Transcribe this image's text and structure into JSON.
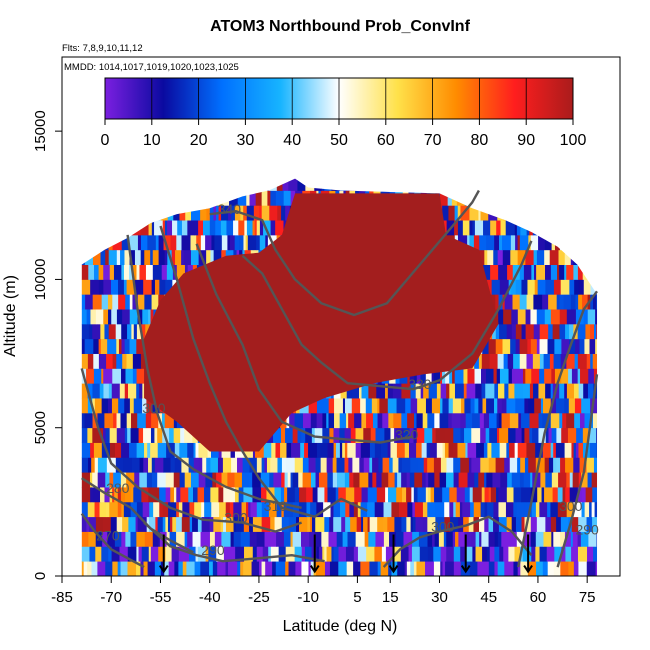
{
  "chart_data": {
    "type": "heatmap",
    "title": "ATOM3 Northbound Prob_ConvInf",
    "flights_note": "Flts: 7,8,9,10,11,12",
    "dates_note": "MMDD: 1014,1017,1019,1020,1023,1025",
    "xlabel": "Latitude (deg N)",
    "ylabel": "Altitude (m)",
    "xlim": [
      -85,
      85
    ],
    "ylim": [
      0,
      17500
    ],
    "x_ticks": [
      -85,
      -70,
      -55,
      -40,
      -25,
      -10,
      5,
      15,
      30,
      45,
      60,
      75
    ],
    "y_ticks": [
      0,
      5000,
      10000,
      15000
    ],
    "colorbar": {
      "range": [
        0,
        100
      ],
      "ticks": [
        0,
        10,
        20,
        30,
        40,
        50,
        60,
        70,
        80,
        90,
        100
      ],
      "stops": [
        "#7b1fe0",
        "#0a0aa0",
        "#0070ff",
        "#17b4ff",
        "#ffffff",
        "#ffe14a",
        "#ff8c00",
        "#ff1e1e",
        "#aa1c1c"
      ]
    },
    "envelope": [
      {
        "lat": -79,
        "top": 10500
      },
      {
        "lat": -72,
        "top": 11000
      },
      {
        "lat": -65,
        "top": 11400
      },
      {
        "lat": -58,
        "top": 11900
      },
      {
        "lat": -50,
        "top": 12200
      },
      {
        "lat": -40,
        "top": 12400
      },
      {
        "lat": -30,
        "top": 12800
      },
      {
        "lat": -22,
        "top": 13000
      },
      {
        "lat": -14,
        "top": 13400
      },
      {
        "lat": -10,
        "top": 13100
      },
      {
        "lat": 0,
        "top": 13000
      },
      {
        "lat": 15,
        "top": 12950
      },
      {
        "lat": 30,
        "top": 12900
      },
      {
        "lat": 40,
        "top": 12400
      },
      {
        "lat": 50,
        "top": 12000
      },
      {
        "lat": 58,
        "top": 11600
      },
      {
        "lat": 66,
        "top": 11100
      },
      {
        "lat": 72,
        "top": 10500
      },
      {
        "lat": 78,
        "top": 9500
      }
    ],
    "high_prob_region": [
      {
        "lat": -60,
        "alt": 8000
      },
      {
        "lat": -55,
        "alt": 9300
      },
      {
        "lat": -48,
        "alt": 10200
      },
      {
        "lat": -35,
        "alt": 10800
      },
      {
        "lat": -25,
        "alt": 10900
      },
      {
        "lat": -18,
        "alt": 11500
      },
      {
        "lat": -14,
        "alt": 12900
      },
      {
        "lat": 30,
        "alt": 12900
      },
      {
        "lat": 32,
        "alt": 11500
      },
      {
        "lat": 42,
        "alt": 11000
      },
      {
        "lat": 48,
        "alt": 8500
      },
      {
        "lat": 40,
        "alt": 7000
      },
      {
        "lat": 25,
        "alt": 6800
      },
      {
        "lat": 10,
        "alt": 6500
      },
      {
        "lat": -5,
        "alt": 6000
      },
      {
        "lat": -15,
        "alt": 5500
      },
      {
        "lat": -25,
        "alt": 4200
      },
      {
        "lat": -40,
        "alt": 4200
      },
      {
        "lat": -50,
        "alt": 5200
      },
      {
        "lat": -60,
        "alt": 6000
      }
    ],
    "contours": [
      {
        "label": "270",
        "label_at": {
          "lat": -71,
          "alt": 1200
        },
        "points": [
          [
            -79,
            2100
          ],
          [
            -75,
            1500
          ],
          [
            -70,
            900
          ],
          [
            -65,
            600
          ],
          [
            -60,
            300
          ]
        ]
      },
      {
        "label": "280",
        "label_at": {
          "lat": -68,
          "alt": 2800
        },
        "points": [
          [
            -79,
            3300
          ],
          [
            -72,
            2800
          ],
          [
            -64,
            2300
          ],
          [
            -58,
            1600
          ],
          [
            -52,
            1200
          ],
          [
            -45,
            800
          ]
        ]
      },
      {
        "label": "290",
        "label_at": {
          "lat": -39,
          "alt": 700
        },
        "points": [
          [
            -60,
            1800
          ],
          [
            -52,
            1000
          ],
          [
            -44,
            700
          ],
          [
            -36,
            500
          ],
          [
            -25,
            600
          ],
          [
            -15,
            700
          ],
          [
            -5,
            500
          ]
        ]
      },
      {
        "label": "300",
        "label_at": {
          "lat": -32,
          "alt": 1800
        },
        "points": [
          [
            -79,
            7000
          ],
          [
            -74,
            5000
          ],
          [
            -70,
            3800
          ],
          [
            -62,
            3000
          ],
          [
            -52,
            2300
          ],
          [
            -42,
            1900
          ],
          [
            -30,
            1800
          ],
          [
            -20,
            1500
          ],
          [
            -12,
            1800
          ]
        ]
      },
      {
        "label": "300",
        "label_at": {
          "lat": 31,
          "alt": 1500
        },
        "points": [
          [
            13,
            300
          ],
          [
            18,
            900
          ],
          [
            24,
            1300
          ],
          [
            30,
            1500
          ],
          [
            38,
            1700
          ],
          [
            45,
            2000
          ],
          [
            52,
            1500
          ],
          [
            58,
            700
          ]
        ]
      },
      {
        "label": "300",
        "label_at": {
          "lat": -57,
          "alt": 5500
        },
        "points": [
          [
            -65,
            11500
          ],
          [
            -62,
            9000
          ],
          [
            -59,
            7000
          ],
          [
            -56,
            5500
          ],
          [
            -52,
            4200
          ],
          [
            -45,
            3600
          ],
          [
            -35,
            3000
          ],
          [
            -25,
            2600
          ],
          [
            -12,
            2300
          ]
        ]
      },
      {
        "label": "310",
        "label_at": {
          "lat": -20,
          "alt": 2200
        },
        "points": [
          [
            -55,
            11800
          ],
          [
            -50,
            10000
          ],
          [
            -45,
            8000
          ],
          [
            -40,
            6500
          ],
          [
            -35,
            5200
          ],
          [
            -30,
            4200
          ],
          [
            -25,
            3300
          ],
          [
            -18,
            2300
          ],
          [
            -8,
            2000
          ],
          [
            0,
            2600
          ],
          [
            8,
            2200
          ]
        ]
      },
      {
        "label": "320",
        "label_at": {
          "lat": 20,
          "alt": 4600
        },
        "points": [
          [
            -44,
            11200
          ],
          [
            -38,
            9500
          ],
          [
            -30,
            7800
          ],
          [
            -25,
            6300
          ],
          [
            -18,
            5200
          ],
          [
            -8,
            4700
          ],
          [
            2,
            4600
          ],
          [
            12,
            4500
          ],
          [
            22,
            4700
          ]
        ]
      },
      {
        "label": "330",
        "label_at": {
          "lat": 24,
          "alt": 6300
        },
        "points": [
          [
            -30,
            10800
          ],
          [
            -24,
            10200
          ],
          [
            -18,
            9000
          ],
          [
            -12,
            7800
          ],
          [
            -6,
            7200
          ],
          [
            2,
            6500
          ],
          [
            12,
            6400
          ],
          [
            22,
            6300
          ],
          [
            30,
            6600
          ],
          [
            40,
            7500
          ],
          [
            48,
            9000
          ],
          [
            55,
            10500
          ],
          [
            58,
            11300
          ]
        ]
      },
      {
        "label": "340",
        "label_at": {
          "lat": -34,
          "alt": 12200
        },
        "points": [
          [
            -40,
            12200
          ],
          [
            -32,
            12300
          ],
          [
            -24,
            12000
          ],
          [
            -20,
            11000
          ],
          [
            -14,
            10000
          ],
          [
            -6,
            9200
          ],
          [
            4,
            8800
          ],
          [
            14,
            9200
          ],
          [
            24,
            10500
          ],
          [
            34,
            11800
          ],
          [
            40,
            12600
          ],
          [
            42,
            13000
          ]
        ]
      },
      {
        "label": "300",
        "label_at": {
          "lat": 70,
          "alt": 2200
        },
        "points": [
          [
            54,
            300
          ],
          [
            58,
            2500
          ],
          [
            62,
            4800
          ],
          [
            66,
            6500
          ],
          [
            70,
            7800
          ],
          [
            74,
            9000
          ],
          [
            78,
            9600
          ]
        ]
      },
      {
        "label": "290",
        "label_at": {
          "lat": 75,
          "alt": 1400
        },
        "points": [
          [
            66,
            300
          ],
          [
            70,
            1800
          ],
          [
            74,
            3500
          ],
          [
            78,
            6800
          ]
        ]
      }
    ],
    "flight_markers": [
      -54,
      -8,
      16,
      38,
      57
    ]
  }
}
